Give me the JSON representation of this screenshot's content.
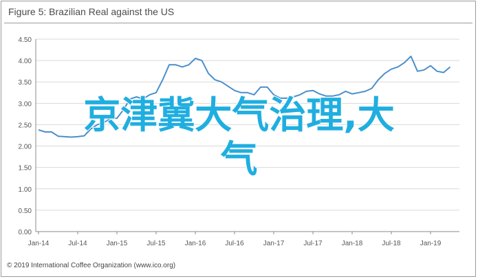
{
  "figure": {
    "title": "Figure 5: Brazilian Real against the US",
    "copyright": "© 2019 International Coffee Organization (www.ico.org)"
  },
  "overlay": {
    "line1": "京津冀大气治理,大",
    "line2": "气"
  },
  "colors": {
    "series": "#4a8fcb",
    "overlay_text": "#20aee0",
    "grid": "#d9d9d9",
    "axis": "#888888"
  },
  "chart_data": {
    "type": "line",
    "title": "Figure 5: Brazilian Real against the US",
    "xlabel": "",
    "ylabel": "",
    "ylim": [
      0,
      4.5
    ],
    "yticks": [
      "0.00",
      "0.50",
      "1.00",
      "1.50",
      "2.00",
      "2.50",
      "3.00",
      "3.50",
      "4.00",
      "4.50"
    ],
    "xticks": [
      "Jan-14",
      "Jul-14",
      "Jan-15",
      "Jul-15",
      "Jan-16",
      "Jul-16",
      "Jan-17",
      "Jul-17",
      "Jan-18",
      "Jul-18",
      "Jan-19"
    ],
    "grid": true,
    "legend": "none",
    "series": [
      {
        "months_from_jan14": [
          0,
          1,
          2,
          3,
          4,
          5,
          6,
          7,
          8,
          9,
          10,
          11,
          12,
          13,
          14,
          15,
          16,
          17,
          18,
          19,
          20,
          21,
          22,
          23,
          24,
          25,
          26,
          27,
          28,
          29,
          30,
          31,
          32,
          33,
          34,
          35,
          36,
          37,
          38,
          39,
          40,
          41,
          42,
          43,
          44,
          45,
          46,
          47,
          48,
          49,
          50,
          51,
          52,
          53,
          54,
          55,
          56,
          57,
          58,
          59,
          60,
          61,
          62,
          63
        ],
        "values": [
          2.38,
          2.33,
          2.33,
          2.23,
          2.22,
          2.21,
          2.22,
          2.24,
          2.4,
          2.5,
          2.55,
          2.64,
          2.65,
          2.85,
          3.1,
          3.15,
          3.1,
          3.2,
          3.25,
          3.55,
          3.9,
          3.9,
          3.85,
          3.9,
          4.05,
          4.0,
          3.7,
          3.55,
          3.5,
          3.4,
          3.3,
          3.25,
          3.25,
          3.2,
          3.38,
          3.38,
          3.2,
          3.12,
          3.12,
          3.15,
          3.2,
          3.28,
          3.3,
          3.22,
          3.17,
          3.17,
          3.2,
          3.28,
          3.22,
          3.25,
          3.28,
          3.35,
          3.55,
          3.7,
          3.8,
          3.85,
          3.95,
          4.1,
          3.75,
          3.78,
          3.88,
          3.75,
          3.72,
          3.85
        ]
      }
    ]
  }
}
